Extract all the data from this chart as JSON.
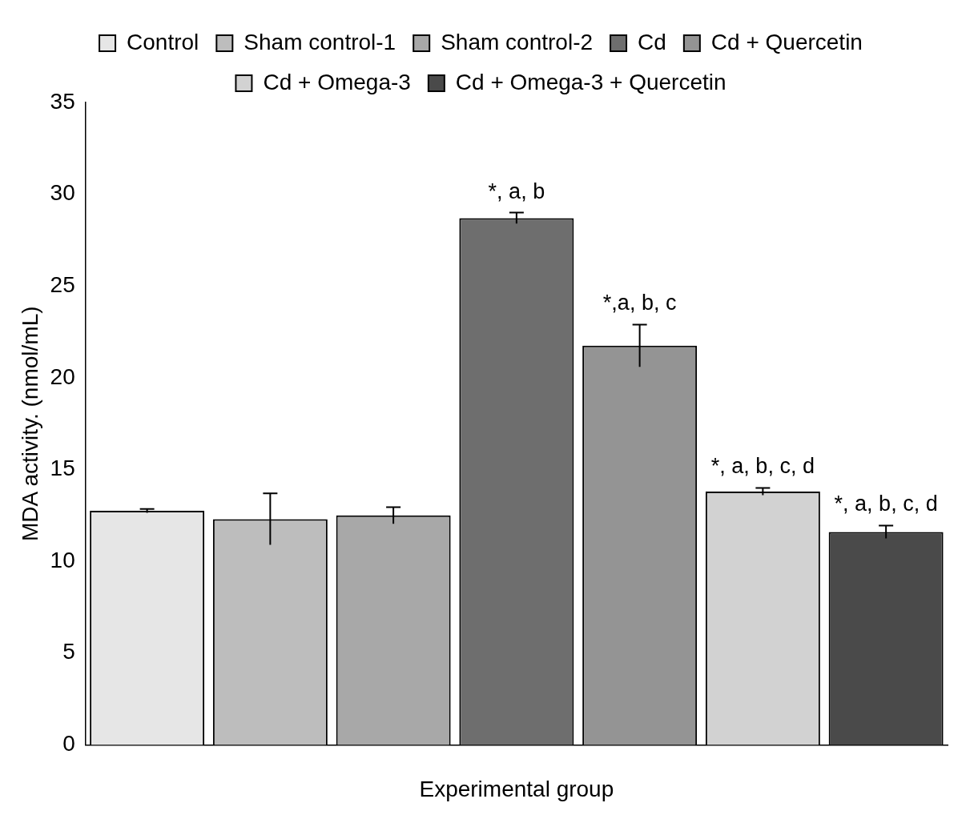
{
  "chart_data": {
    "type": "bar",
    "xlabel": "Experimental group",
    "ylabel": "MDA activity. (nmol/mL)",
    "categories": [
      null,
      null,
      null,
      null,
      null,
      null,
      null
    ],
    "series": [
      {
        "name": "Control",
        "color": "#e6e6e6",
        "values": [
          12.75,
          null,
          null,
          null,
          null,
          null,
          null
        ],
        "errors": [
          0.1,
          null,
          null,
          null,
          null,
          null,
          null
        ]
      },
      {
        "name": "Sham control-1",
        "color": "#bdbdbd",
        "values": [
          null,
          12.3,
          null,
          null,
          null,
          null,
          null
        ],
        "errors": [
          null,
          1.4,
          null,
          null,
          null,
          null,
          null
        ]
      },
      {
        "name": "Sham control-2",
        "color": "#a8a8a8",
        "values": [
          null,
          null,
          12.5,
          null,
          null,
          null,
          null
        ],
        "errors": [
          null,
          null,
          0.45,
          null,
          null,
          null,
          null
        ]
      },
      {
        "name": "Cd",
        "color": "#6e6e6e",
        "values": [
          null,
          null,
          null,
          28.7,
          null,
          null,
          null
        ],
        "errors": [
          null,
          null,
          null,
          0.3,
          null,
          null,
          null
        ]
      },
      {
        "name": "Cd + Quercetin",
        "color": "#949494",
        "values": [
          null,
          null,
          null,
          null,
          21.75,
          null,
          null
        ],
        "errors": [
          null,
          null,
          null,
          null,
          1.15,
          null,
          null
        ]
      },
      {
        "name": "Cd + Omega-3",
        "color": "#d2d2d2",
        "values": [
          null,
          null,
          null,
          null,
          null,
          13.8,
          null
        ],
        "errors": [
          null,
          null,
          null,
          null,
          null,
          0.2,
          null
        ]
      },
      {
        "name": "Cd + Omega-3 + Quercetin",
        "color": "#4a4a4a",
        "values": [
          null,
          null,
          null,
          null,
          null,
          null,
          11.6
        ],
        "errors": [
          null,
          null,
          null,
          null,
          null,
          null,
          0.35
        ]
      }
    ],
    "annotations": [
      "*, a, b",
      "*,a, b, c",
      "*, a, b, c, d",
      "*, a, b, c, d"
    ],
    "ylim": [
      0,
      35
    ],
    "yticks": [
      0,
      5,
      10,
      15,
      20,
      25,
      30,
      35
    ],
    "grid": false,
    "legend": "top"
  }
}
